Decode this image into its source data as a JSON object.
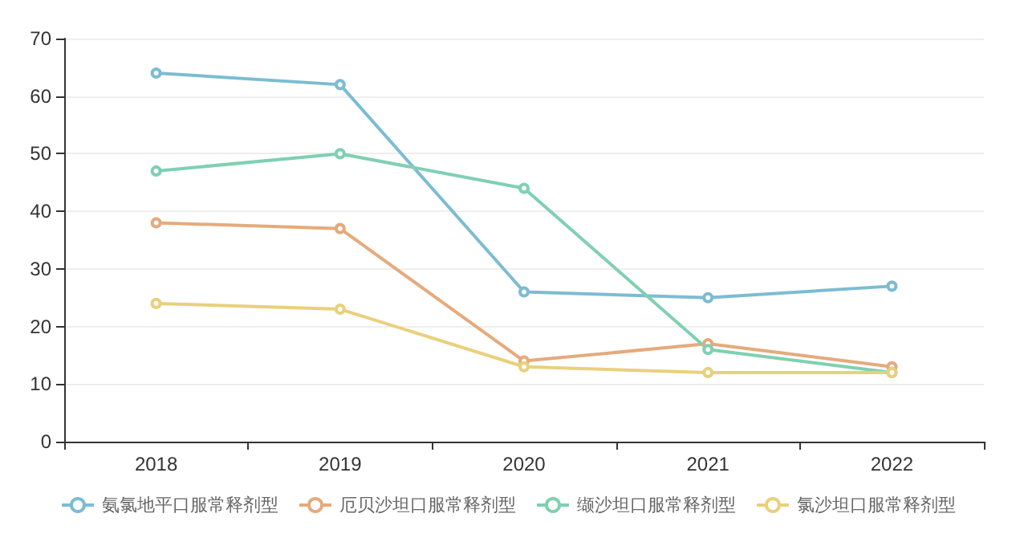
{
  "chart_data": {
    "type": "line",
    "categories": [
      "2018",
      "2019",
      "2020",
      "2021",
      "2022"
    ],
    "series": [
      {
        "name": "氨氯地平口服常释剂型",
        "color": "#7cbcd2",
        "values": [
          64,
          62,
          26,
          25,
          27
        ]
      },
      {
        "name": "厄贝沙坦口服常释剂型",
        "color": "#e5aa7c",
        "values": [
          38,
          37,
          14,
          17,
          13
        ]
      },
      {
        "name": "缬沙坦口服常释剂型",
        "color": "#7fd0b2",
        "values": [
          47,
          50,
          44,
          16,
          12
        ]
      },
      {
        "name": "氯沙坦口服常释剂型",
        "color": "#e9d07c",
        "values": [
          24,
          23,
          13,
          12,
          12
        ]
      }
    ],
    "ylim": [
      0,
      70
    ],
    "yticks": [
      0,
      10,
      20,
      30,
      40,
      50,
      60,
      70
    ],
    "grid": "y",
    "legend": "bottom",
    "marker": "circle",
    "line_style": "solid"
  }
}
